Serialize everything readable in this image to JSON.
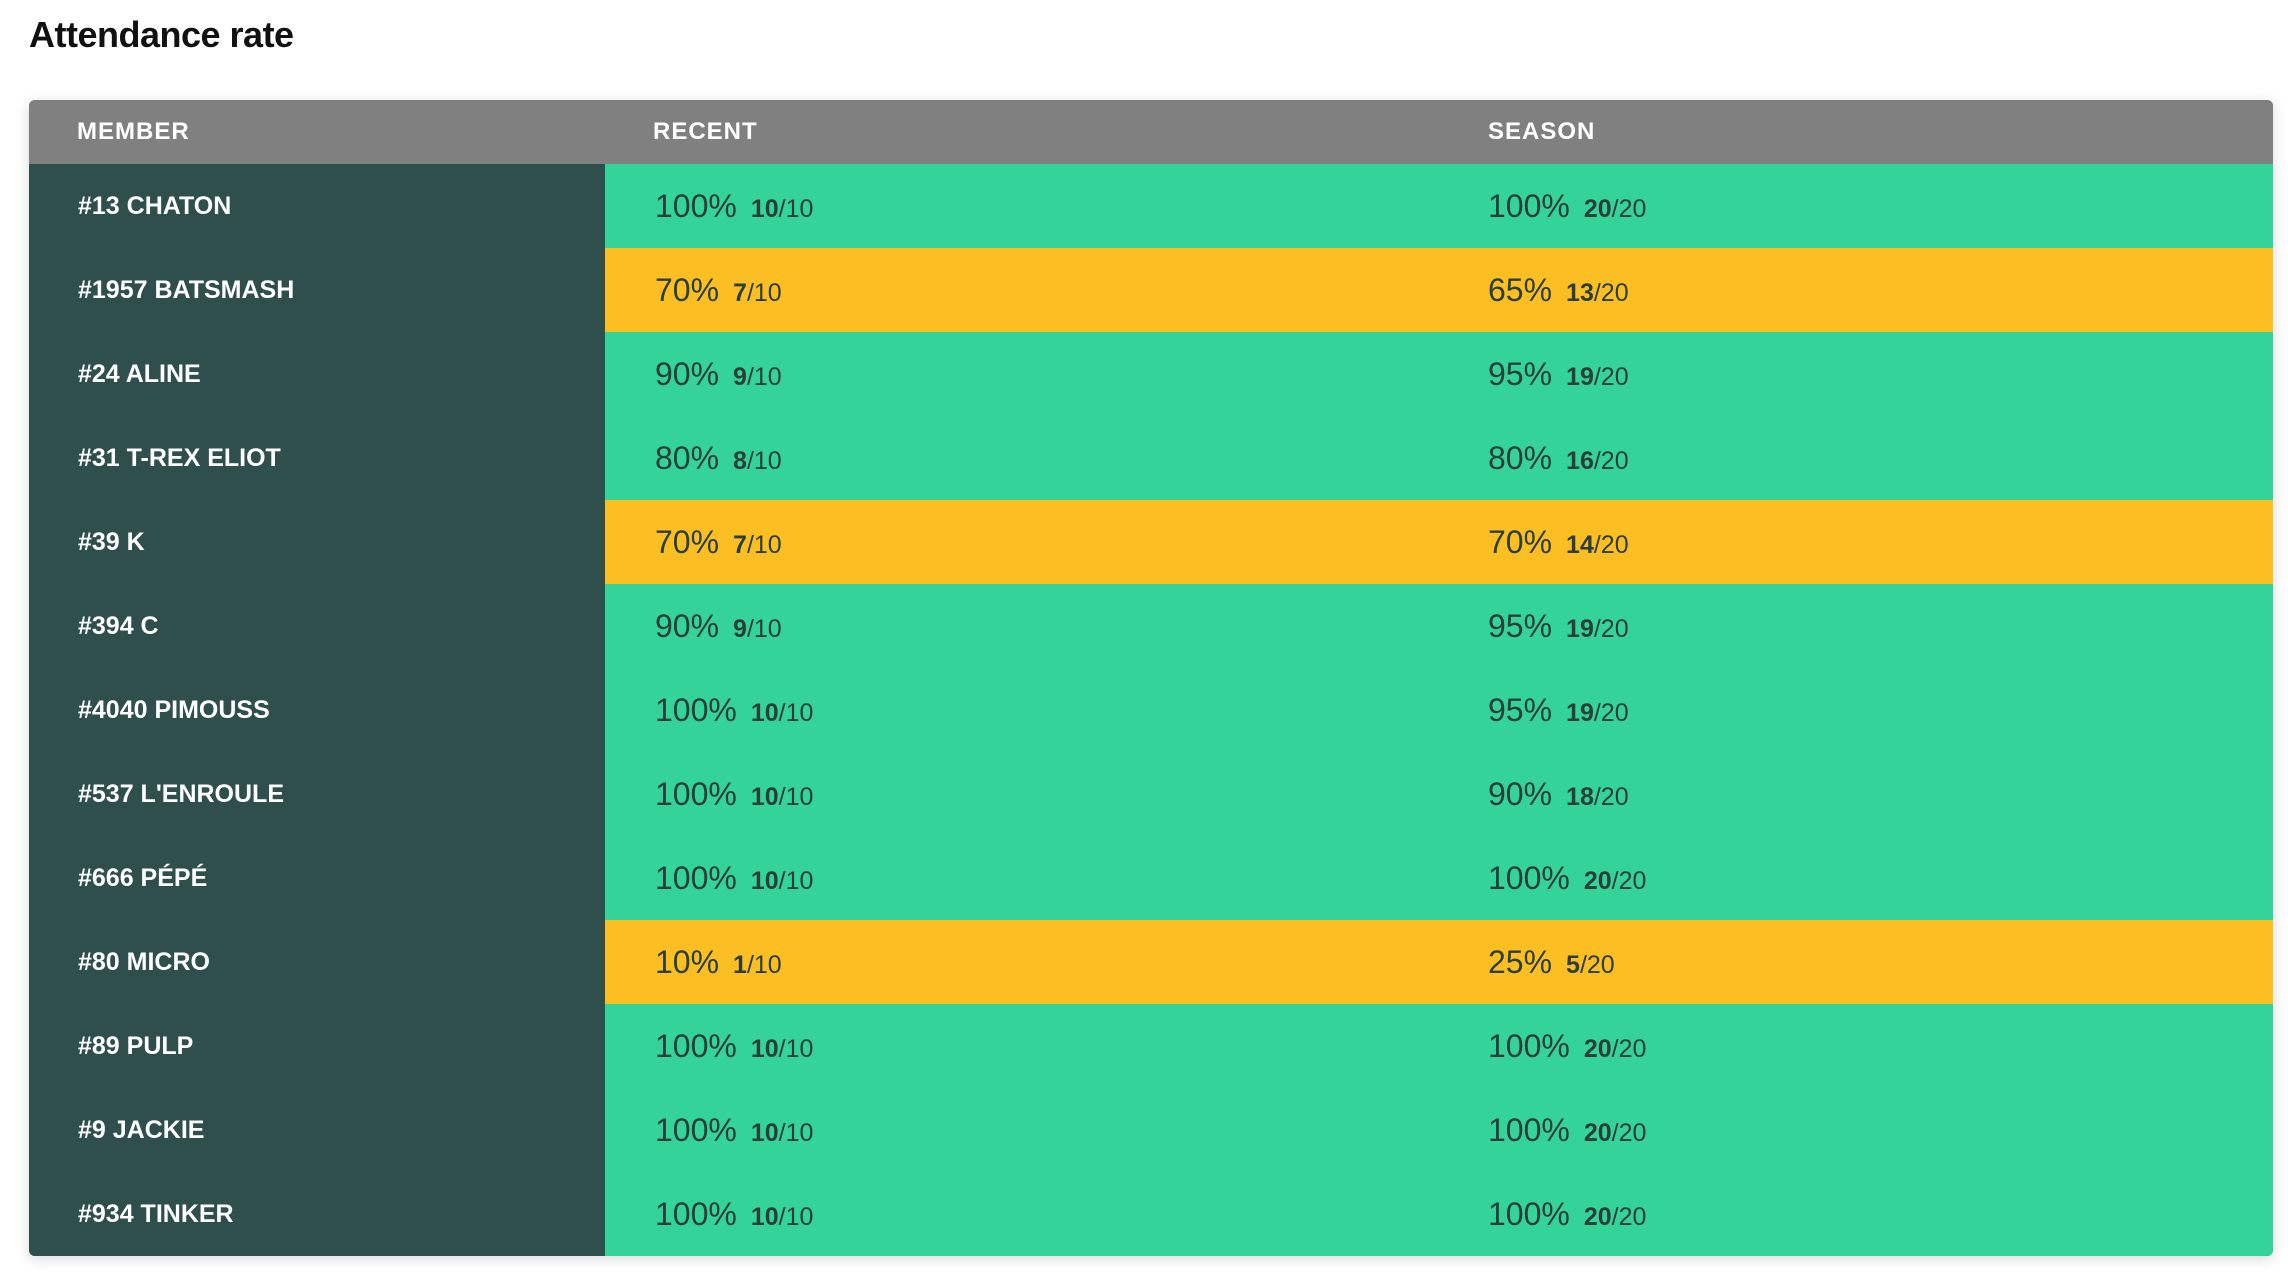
{
  "title": "Attendance rate",
  "columns": {
    "member": "MEMBER",
    "recent": "RECENT",
    "season": "SEASON"
  },
  "colors": {
    "member_bg": "#2f4f4c",
    "header_bg": "#808080",
    "good": "#34d399",
    "warn": "#fbbf24"
  },
  "rows": [
    {
      "member": "#13 CHATON",
      "status": "good",
      "recent": {
        "pct": "100%",
        "count": "10",
        "total": "/10"
      },
      "season": {
        "pct": "100%",
        "count": "20",
        "total": "/20"
      }
    },
    {
      "member": "#1957 BATSMASH",
      "status": "warn",
      "recent": {
        "pct": "70%",
        "count": "7",
        "total": "/10"
      },
      "season": {
        "pct": "65%",
        "count": "13",
        "total": "/20"
      }
    },
    {
      "member": "#24 ALINE",
      "status": "good",
      "recent": {
        "pct": "90%",
        "count": "9",
        "total": "/10"
      },
      "season": {
        "pct": "95%",
        "count": "19",
        "total": "/20"
      }
    },
    {
      "member": "#31 T-REX ELIOT",
      "status": "good",
      "recent": {
        "pct": "80%",
        "count": "8",
        "total": "/10"
      },
      "season": {
        "pct": "80%",
        "count": "16",
        "total": "/20"
      }
    },
    {
      "member": "#39 K",
      "status": "warn",
      "recent": {
        "pct": "70%",
        "count": "7",
        "total": "/10"
      },
      "season": {
        "pct": "70%",
        "count": "14",
        "total": "/20"
      }
    },
    {
      "member": "#394 C",
      "status": "good",
      "recent": {
        "pct": "90%",
        "count": "9",
        "total": "/10"
      },
      "season": {
        "pct": "95%",
        "count": "19",
        "total": "/20"
      }
    },
    {
      "member": "#4040 PIMOUSS",
      "status": "good",
      "recent": {
        "pct": "100%",
        "count": "10",
        "total": "/10"
      },
      "season": {
        "pct": "95%",
        "count": "19",
        "total": "/20"
      }
    },
    {
      "member": "#537 L'ENROULE",
      "status": "good",
      "recent": {
        "pct": "100%",
        "count": "10",
        "total": "/10"
      },
      "season": {
        "pct": "90%",
        "count": "18",
        "total": "/20"
      }
    },
    {
      "member": "#666 PÉPÉ",
      "status": "good",
      "recent": {
        "pct": "100%",
        "count": "10",
        "total": "/10"
      },
      "season": {
        "pct": "100%",
        "count": "20",
        "total": "/20"
      }
    },
    {
      "member": "#80 MICRO",
      "status": "warn",
      "recent": {
        "pct": "10%",
        "count": "1",
        "total": "/10"
      },
      "season": {
        "pct": "25%",
        "count": "5",
        "total": "/20"
      }
    },
    {
      "member": "#89 PULP",
      "status": "good",
      "recent": {
        "pct": "100%",
        "count": "10",
        "total": "/10"
      },
      "season": {
        "pct": "100%",
        "count": "20",
        "total": "/20"
      }
    },
    {
      "member": "#9 JACKIE",
      "status": "good",
      "recent": {
        "pct": "100%",
        "count": "10",
        "total": "/10"
      },
      "season": {
        "pct": "100%",
        "count": "20",
        "total": "/20"
      }
    },
    {
      "member": "#934 TINKER",
      "status": "good",
      "recent": {
        "pct": "100%",
        "count": "10",
        "total": "/10"
      },
      "season": {
        "pct": "100%",
        "count": "20",
        "total": "/20"
      }
    }
  ]
}
